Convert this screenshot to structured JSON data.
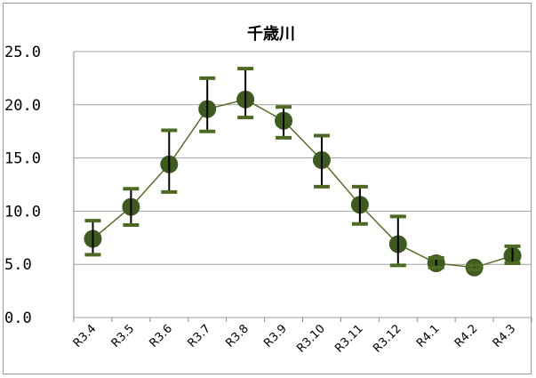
{
  "chart_data": {
    "type": "line",
    "title": "千歳川",
    "categories": [
      "R3.4",
      "R3.5",
      "R3.6",
      "R3.7",
      "R3.8",
      "R3.9",
      "R3.10",
      "R3.11",
      "R3.12",
      "R4.1",
      "R4.2",
      "R4.3"
    ],
    "series": [
      {
        "values": [
          7.4,
          10.4,
          14.4,
          19.6,
          20.5,
          18.5,
          14.8,
          10.6,
          6.9,
          5.1,
          4.7,
          5.8
        ],
        "error_high": [
          9.1,
          12.1,
          17.6,
          22.5,
          23.4,
          19.8,
          17.1,
          12.3,
          9.5,
          5.6,
          4.9,
          6.7
        ],
        "error_low": [
          5.9,
          8.7,
          11.8,
          17.5,
          18.8,
          16.9,
          12.3,
          8.8,
          4.9,
          4.7,
          4.5,
          5.1
        ]
      }
    ],
    "yticks": [
      "0.0",
      "5.0",
      "10.0",
      "15.0",
      "20.0",
      "25.0"
    ],
    "ylim": [
      0,
      25
    ],
    "grid": true,
    "legend": "none",
    "colors": {
      "marker": "#3f5a1e",
      "line": "#5b6b28",
      "error_bar": "#000000",
      "cap": "#4d6a22",
      "grid": "#a0a0a0"
    }
  }
}
